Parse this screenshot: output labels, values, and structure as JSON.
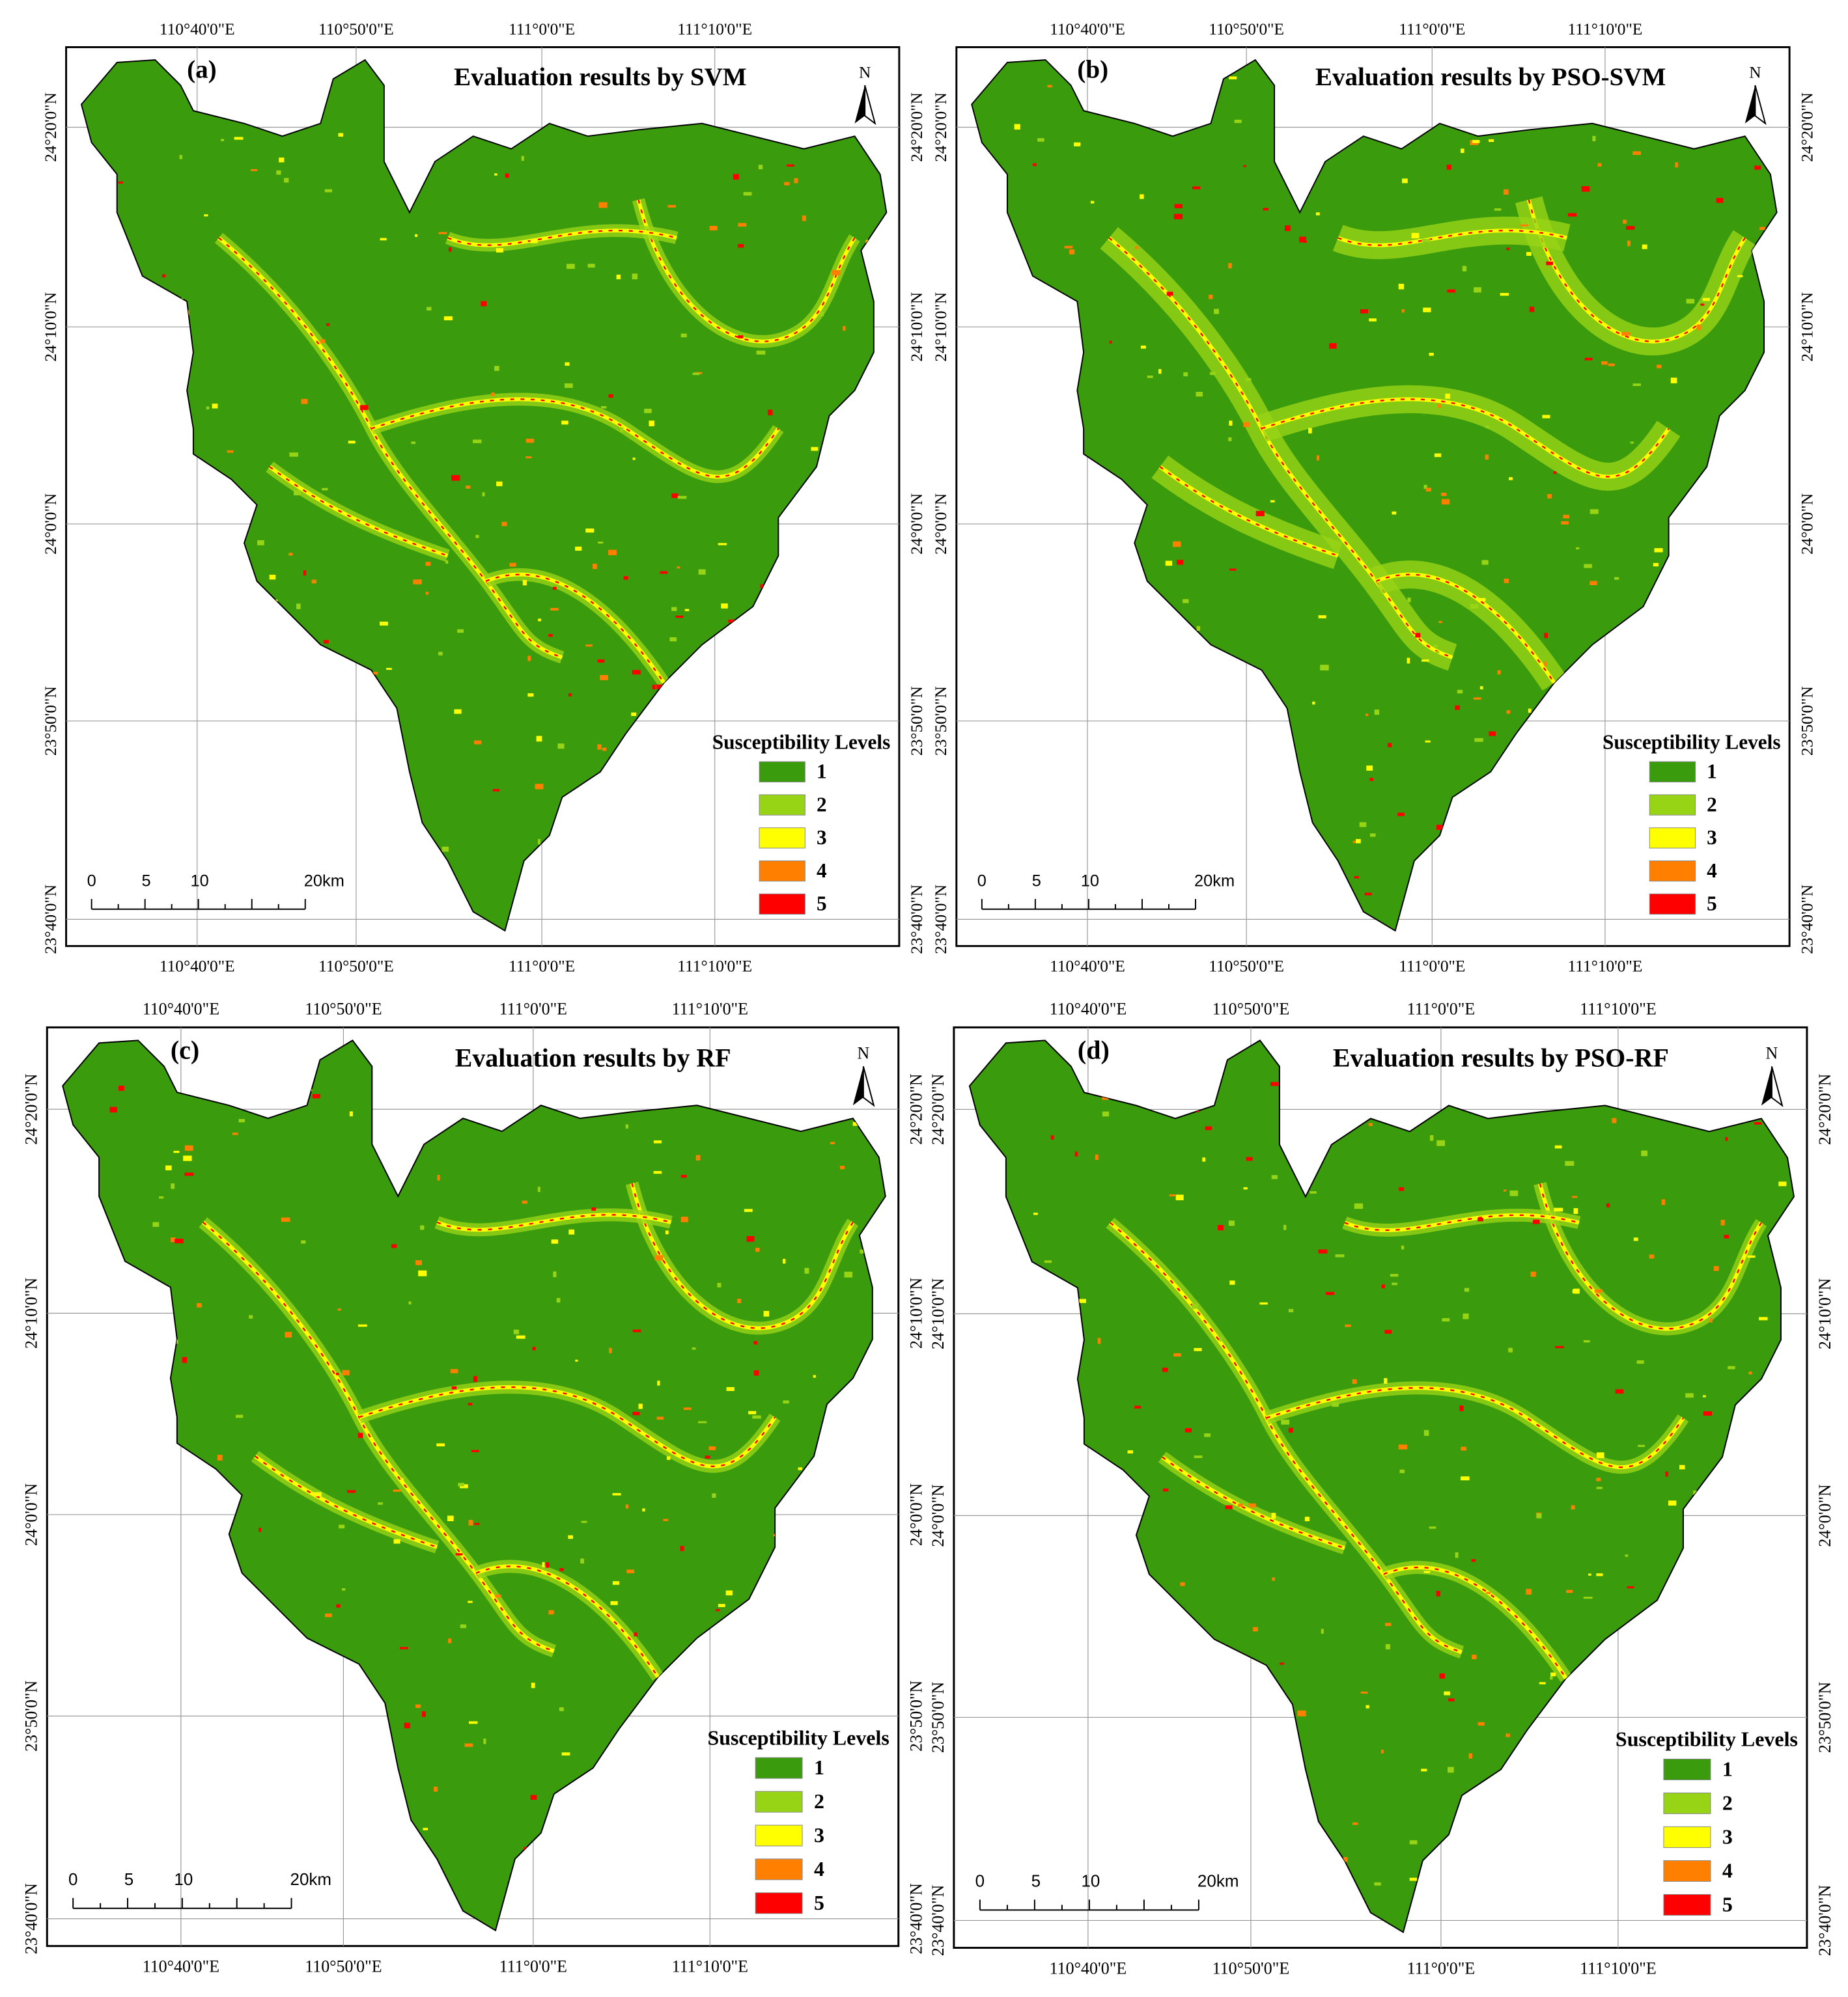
{
  "panels": [
    {
      "label": "(a)",
      "title": "Evaluation results by SVM"
    },
    {
      "label": "(b)",
      "title": "Evaluation results by PSO-SVM"
    },
    {
      "label": "(c)",
      "title": "Evaluation results by RF"
    },
    {
      "label": "(d)",
      "title": "Evaluation results by PSO-RF"
    }
  ],
  "graticule": {
    "lon": [
      "110°40'0\"E",
      "110°50'0\"E",
      "111°0'0\"E",
      "111°10'0\"E"
    ],
    "lat": [
      "24°20'0\"N",
      "24°10'0\"N",
      "24°0'0\"N",
      "23°50'0\"N",
      "23°40'0\"N"
    ]
  },
  "north": "N",
  "scale_bar": [
    "0",
    "5",
    "10",
    "20km"
  ],
  "legend": {
    "title": "Susceptibility Levels",
    "items": [
      {
        "label": "1",
        "color": "#3a9b0c"
      },
      {
        "label": "2",
        "color": "#98d416"
      },
      {
        "label": "3",
        "color": "#ffff00"
      },
      {
        "label": "4",
        "color": "#ff8000"
      },
      {
        "label": "5",
        "color": "#ff0000"
      }
    ]
  }
}
